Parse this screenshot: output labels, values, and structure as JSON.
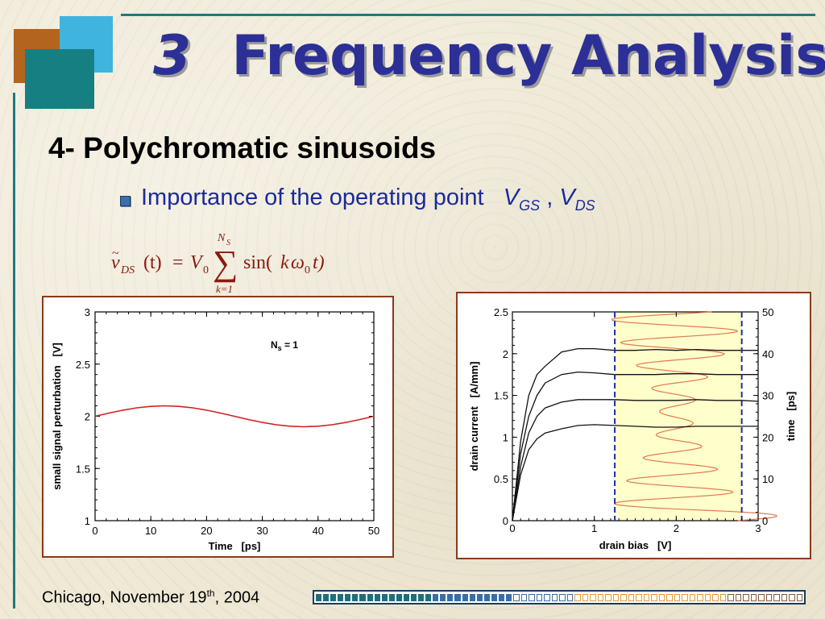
{
  "slide": {
    "title_number": "3",
    "title_text": "Frequency Analysis",
    "subtitle": "4- Polychromatic sinusoids",
    "bullet_text": "Importance of the operating point",
    "bullet_v1": "V",
    "bullet_v1_sub": "GS",
    "bullet_sep": ",",
    "bullet_v2": "V",
    "bullet_v2_sub": "DS",
    "footer_text": "Chicago, November 19",
    "footer_sup": "th",
    "footer_year": ", 2004"
  },
  "formula": {
    "lhs_var": "v",
    "lhs_sub": "DS",
    "arg": "(t)",
    "eq": "=",
    "coef": "V",
    "coef_sub": "0",
    "upper": "N",
    "upper_sub": "S",
    "lower": "k=1",
    "func": "sin(",
    "k": "k",
    "omega": "ω",
    "omega_sub": "0",
    "t": "t)",
    "color": "#8b1a10"
  },
  "progress_bar": {
    "segments": [
      {
        "color": "#1f6f7a",
        "count": 16,
        "filled": true
      },
      {
        "color": "#3a6ea8",
        "count": 11,
        "filled": true
      },
      {
        "color": "#3a6ea8",
        "count": 8,
        "filled": false
      },
      {
        "color": "#e39a3a",
        "count": 20,
        "filled": false
      },
      {
        "color": "#8a5a3a",
        "count": 10,
        "filled": false
      }
    ]
  },
  "chart_data": [
    {
      "type": "line",
      "xlabel": "Time   [ps]",
      "ylabel": "small signal perturbation   [V]",
      "xlim": [
        0,
        50
      ],
      "ylim": [
        1,
        3
      ],
      "xticks": [
        0,
        10,
        20,
        30,
        40,
        50
      ],
      "yticks": [
        1,
        1.5,
        2,
        2.5,
        3
      ],
      "annotation": "N",
      "annotation_sub": "s",
      "annotation_rest": " = 1",
      "series": [
        {
          "color": "#d42020",
          "x": [
            0,
            2.5,
            5,
            7.5,
            10,
            12.5,
            15,
            17.5,
            20,
            22.5,
            25,
            27.5,
            30,
            32.5,
            35,
            37.5,
            40,
            42.5,
            45,
            47.5,
            50
          ],
          "y": [
            2.0,
            2.031,
            2.059,
            2.081,
            2.095,
            2.1,
            2.095,
            2.081,
            2.059,
            2.031,
            2.0,
            1.969,
            1.941,
            1.919,
            1.905,
            1.9,
            1.905,
            1.919,
            1.941,
            1.969,
            2.0
          ]
        }
      ]
    },
    {
      "type": "line",
      "xlabel": "drain bias   [V]",
      "ylabel": "drain current   [A/mm]",
      "ylabel_right": "time   [ps]",
      "xlim": [
        0,
        3
      ],
      "ylim": [
        0,
        2.5
      ],
      "xticks": [
        0,
        1,
        2,
        3
      ],
      "yticks": [
        0,
        0.5,
        1,
        1.5,
        2,
        2.5
      ],
      "yticks_labels": [
        "0",
        "0.5",
        "1",
        "1.5",
        "2",
        "2.5"
      ],
      "yticks_right": [
        0,
        10,
        20,
        30,
        40,
        50
      ],
      "ylim_right": [
        0,
        50
      ],
      "shaded_region_x": [
        1.25,
        2.8
      ],
      "shade_color": "#ffffcc",
      "dashed_color": "#1f2fa0",
      "curves": [
        {
          "x": [
            0,
            0.1,
            0.2,
            0.3,
            0.4,
            0.6,
            0.8,
            1.0,
            1.25,
            1.5,
            1.75,
            2.0,
            2.25,
            2.5,
            2.8,
            3.0
          ],
          "y": [
            0,
            0.55,
            0.85,
            0.98,
            1.05,
            1.1,
            1.14,
            1.15,
            1.14,
            1.13,
            1.12,
            1.12,
            1.13,
            1.13,
            1.13,
            1.13
          ]
        },
        {
          "x": [
            0,
            0.1,
            0.2,
            0.3,
            0.4,
            0.6,
            0.8,
            1.0,
            1.25,
            1.5,
            1.75,
            2.0,
            2.25,
            2.5,
            2.8,
            3.0
          ],
          "y": [
            0,
            0.65,
            1.05,
            1.25,
            1.35,
            1.42,
            1.45,
            1.45,
            1.45,
            1.44,
            1.44,
            1.44,
            1.45,
            1.44,
            1.44,
            1.43
          ]
        },
        {
          "x": [
            0,
            0.1,
            0.2,
            0.3,
            0.4,
            0.6,
            0.8,
            1.0,
            1.25,
            1.5,
            1.75,
            2.0,
            2.25,
            2.5,
            2.8,
            3.0
          ],
          "y": [
            0,
            0.8,
            1.25,
            1.5,
            1.65,
            1.75,
            1.78,
            1.77,
            1.75,
            1.75,
            1.75,
            1.76,
            1.76,
            1.75,
            1.75,
            1.75
          ]
        },
        {
          "x": [
            0,
            0.1,
            0.2,
            0.3,
            0.4,
            0.6,
            0.8,
            1.0,
            1.25,
            1.5,
            1.75,
            2.0,
            2.25,
            2.5,
            2.8,
            3.0
          ],
          "y": [
            0,
            0.95,
            1.5,
            1.75,
            1.85,
            2.02,
            2.06,
            2.06,
            2.04,
            2.04,
            2.05,
            2.04,
            2.05,
            2.04,
            2.04,
            2.04
          ]
        }
      ],
      "time_series": {
        "color": "#e07a50",
        "v_dc": 2.0,
        "amp": 0.8,
        "t_max": 50
      }
    }
  ]
}
